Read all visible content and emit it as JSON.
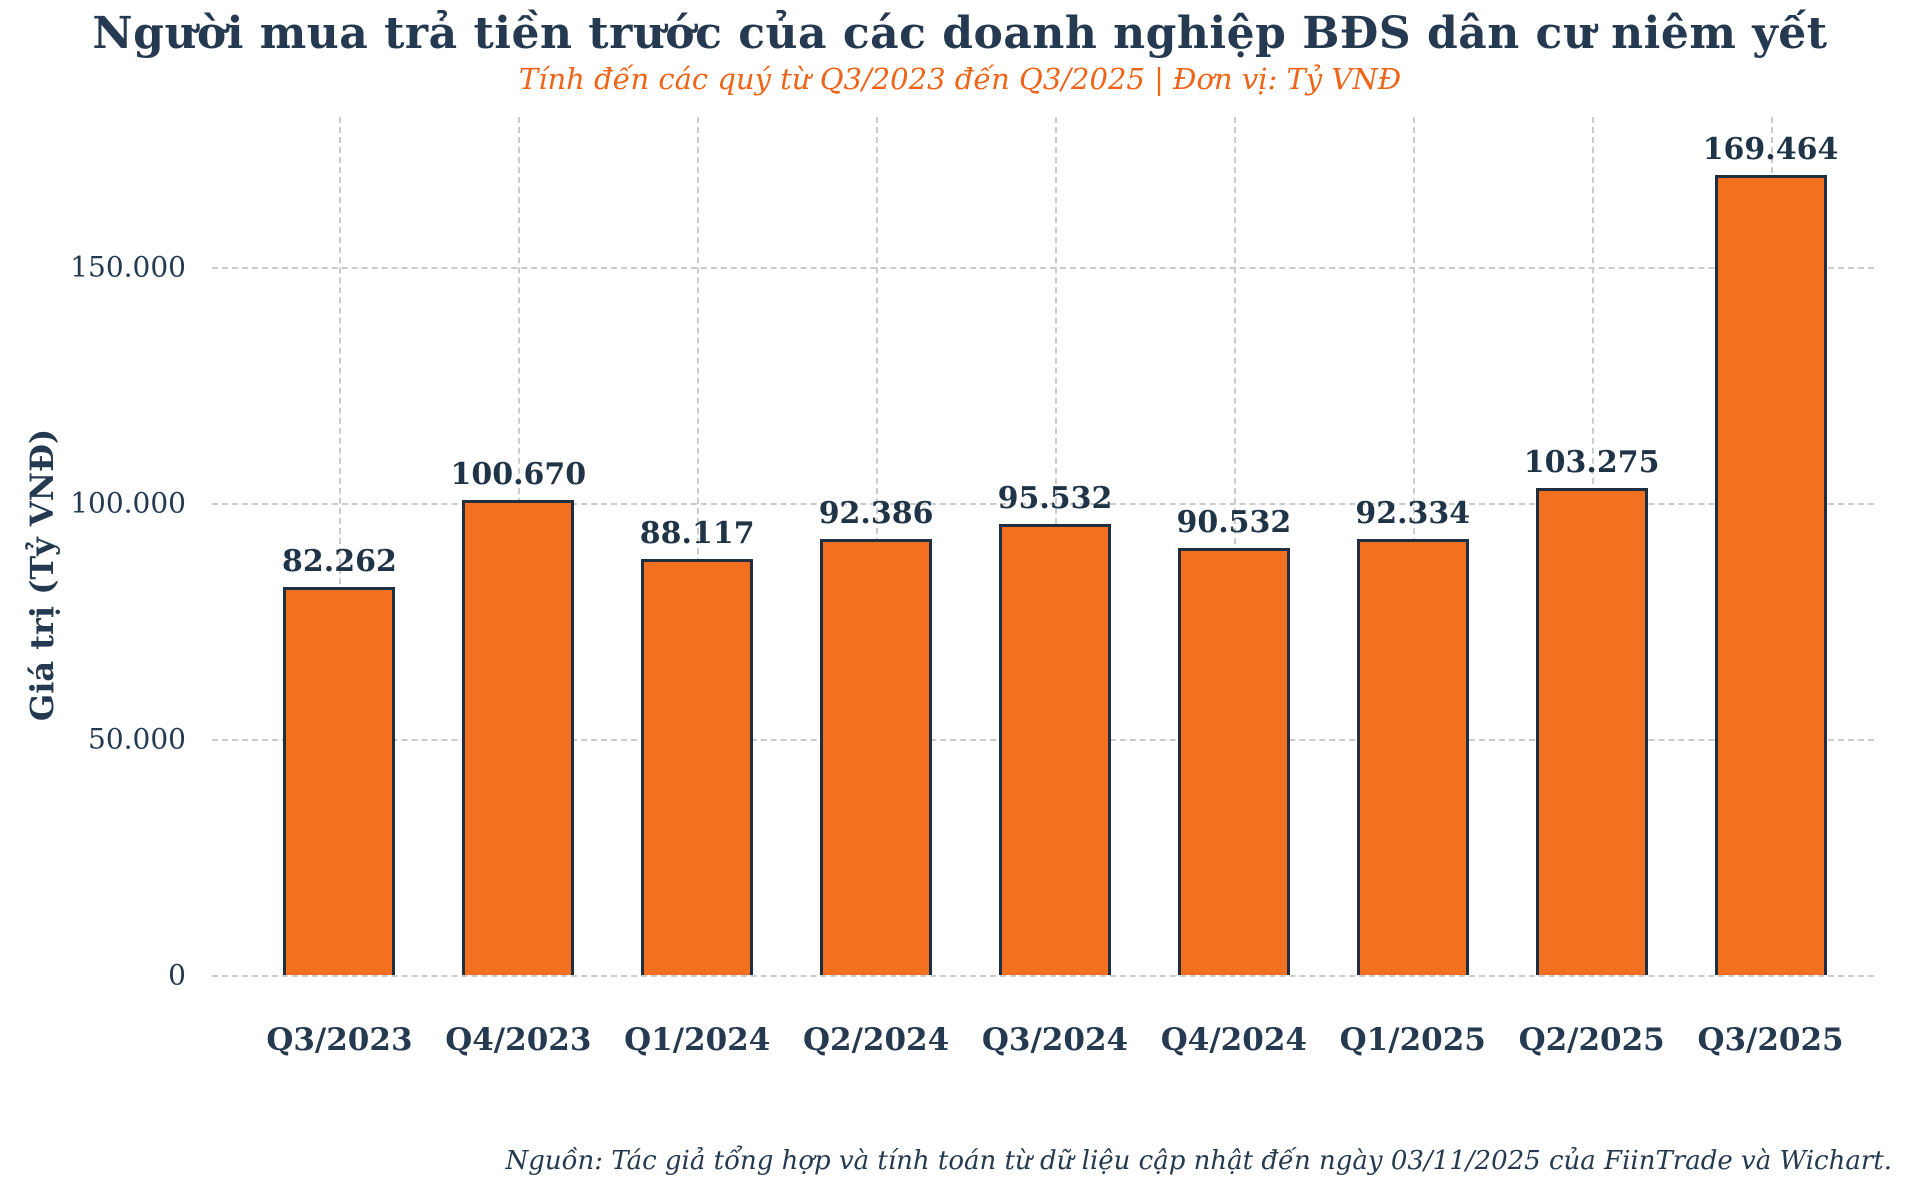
{
  "chart_data": {
    "type": "bar",
    "title": "Người mua trả tiền trước của các doanh nghiệp BĐS dân cư niêm yết",
    "subtitle": "Tính đến các quý từ Q3/2023 đến Q3/2025 | Đơn vị: Tỷ VNĐ",
    "categories": [
      "Q3/2023",
      "Q4/2023",
      "Q1/2024",
      "Q2/2024",
      "Q3/2024",
      "Q4/2024",
      "Q1/2025",
      "Q2/2025",
      "Q3/2025"
    ],
    "values": [
      82262,
      100670,
      88117,
      92386,
      95532,
      90532,
      92334,
      103275,
      169464
    ],
    "value_labels": [
      "82.262",
      "100.670",
      "88.117",
      "92.386",
      "95.532",
      "90.532",
      "92.334",
      "103.275",
      "169.464"
    ],
    "xlabel": "",
    "ylabel": "Giá trị (Tỷ VNĐ)",
    "ylim": [
      0,
      178000
    ],
    "yticks": [
      0,
      50000,
      100000,
      150000
    ],
    "ytick_labels": [
      "0",
      "50.000",
      "100.000",
      "150.000"
    ],
    "grid": "dashed-horizontal-and-vertical",
    "legend_position": "none",
    "source_note": "Nguồn: Tác giả tổng hợp và tính toán từ dữ liệu cập nhật đến ngày 03/11/2025 của FiinTrade và Wichart.",
    "colors": {
      "bar_fill": "#f37021",
      "bar_border": "#1e2f42",
      "title_text": "#253a50",
      "subtitle_text": "#ee6418",
      "axis_text": "#253a50",
      "grid": "#cbcbcb",
      "background": "#ffffff"
    }
  }
}
